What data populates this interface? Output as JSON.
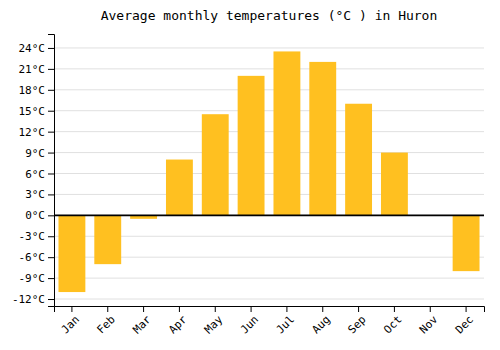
{
  "chart_data": {
    "type": "bar",
    "title": "Average monthly temperatures (°C ) in Huron",
    "categories": [
      "Jan",
      "Feb",
      "Mar",
      "Apr",
      "May",
      "Jun",
      "Jul",
      "Aug",
      "Sep",
      "Oct",
      "Nov",
      "Dec"
    ],
    "values": [
      -11.0,
      -7.0,
      -0.5,
      8.0,
      14.5,
      20.0,
      23.5,
      22.0,
      16.0,
      9.0,
      0.0,
      -8.0
    ],
    "color": "#FFC020",
    "ylim": [
      -13,
      26
    ],
    "yticks": [
      {
        "value": -12,
        "label": "-12°C"
      },
      {
        "value": -9,
        "label": "-9°C"
      },
      {
        "value": -6,
        "label": "-6°C"
      },
      {
        "value": -3,
        "label": "-3°C"
      },
      {
        "value": 0,
        "label": "0°C"
      },
      {
        "value": 3,
        "label": "3°C"
      },
      {
        "value": 6,
        "label": "6°C"
      },
      {
        "value": 9,
        "label": "9°C"
      },
      {
        "value": 12,
        "label": "12°C"
      },
      {
        "value": 15,
        "label": "15°C"
      },
      {
        "value": 18,
        "label": "18°C"
      },
      {
        "value": 21,
        "label": "21°C"
      },
      {
        "value": 24,
        "label": "24°C"
      }
    ],
    "grid": true
  }
}
